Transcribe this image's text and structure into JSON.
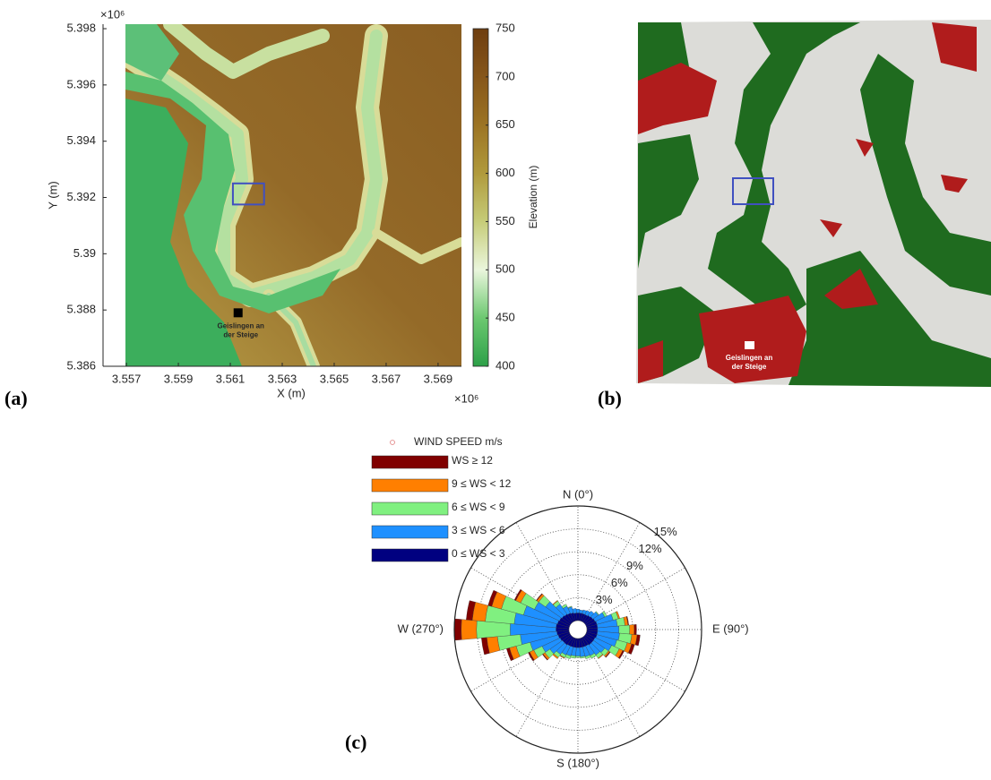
{
  "panel_labels": [
    "(a)",
    "(b)",
    "(c)"
  ],
  "landcover": {
    "site_label_lines": [
      "Geislingen an",
      "der Steige"
    ]
  },
  "chart_data": [
    {
      "type": "map",
      "x_label": "X (m)",
      "y_label": "Y (m)",
      "x_exponent": "×10⁶",
      "y_exponent": "×10⁶",
      "xlim": [
        3.5561,
        3.5699
      ],
      "ylim": [
        5.386,
        5.39816
      ],
      "xticks": [
        3.557,
        3.559,
        3.561,
        3.563,
        3.565,
        3.567,
        3.569
      ],
      "yticks": [
        5.386,
        5.388,
        5.39,
        5.392,
        5.394,
        5.396,
        5.398
      ],
      "colorbar": {
        "label": "Elevation (m)",
        "lim": [
          400,
          750
        ],
        "ticks": [
          400,
          450,
          500,
          550,
          600,
          650,
          700,
          750
        ],
        "colors": [
          "#2ca048",
          "#6cc870",
          "#eaf6dc",
          "#c6cc78",
          "#b09a3c",
          "#9c7424",
          "#86561a",
          "#6e3e10"
        ]
      },
      "site": {
        "label_lines": [
          "Geislingen an",
          "der Steige"
        ],
        "x": 3.5613,
        "y": 5.3879
      },
      "study_area": {
        "x": [
          3.5611,
          3.5623
        ],
        "y": [
          5.39175,
          5.3925
        ]
      },
      "study_area_color": "#4050c0"
    },
    {
      "type": "windrose",
      "legend_title": "WIND SPEED m/s",
      "directions": [
        0,
        10,
        20,
        30,
        40,
        50,
        60,
        70,
        80,
        90,
        100,
        110,
        120,
        130,
        140,
        150,
        160,
        170,
        180,
        190,
        200,
        210,
        220,
        230,
        240,
        250,
        260,
        270,
        280,
        290,
        300,
        310,
        320,
        330,
        340,
        350
      ],
      "rlim": [
        0,
        15
      ],
      "rticks": [
        {
          "value": 3,
          "label": "3%"
        },
        {
          "value": 6,
          "label": "6%"
        },
        {
          "value": 9,
          "label": "9%"
        },
        {
          "value": 12,
          "label": "12%"
        },
        {
          "value": 15,
          "label": "15%"
        }
      ],
      "angle_ticks": [
        {
          "value": 0,
          "label": "N (0°)"
        },
        {
          "value": 90,
          "label": "E (90°)"
        },
        {
          "value": 180,
          "label": "S (180°)"
        },
        {
          "value": 270,
          "label": "W (270°)"
        }
      ],
      "series": [
        {
          "name": "0 ≤ WS < 3",
          "color": "#000080",
          "values": [
            1.0,
            1.0,
            1.0,
            1.0,
            1.1,
            1.2,
            1.3,
            1.4,
            1.4,
            1.4,
            1.4,
            1.4,
            1.3,
            1.3,
            1.3,
            1.2,
            1.2,
            1.2,
            1.2,
            1.2,
            1.2,
            1.2,
            1.3,
            1.3,
            1.4,
            1.5,
            1.6,
            1.7,
            1.7,
            1.6,
            1.5,
            1.4,
            1.3,
            1.2,
            1.1,
            1.0
          ]
        },
        {
          "name": "3 ≤ WS < 6",
          "color": "#1e90ff",
          "values": [
            0.5,
            0.4,
            0.5,
            0.6,
            0.7,
            0.9,
            1.4,
            2.2,
            2.6,
            2.8,
            2.9,
            2.7,
            2.4,
            1.8,
            1.6,
            1.4,
            1.3,
            1.2,
            1.1,
            1.1,
            1.2,
            1.3,
            1.5,
            2.0,
            2.6,
            3.8,
            4.8,
            6.0,
            5.5,
            4.6,
            3.6,
            2.6,
            1.6,
            1.0,
            0.8,
            0.6
          ]
        },
        {
          "name": "6 ≤ WS < 9",
          "color": "#80f080",
          "values": [
            0,
            0,
            0,
            0,
            0,
            0.1,
            0.3,
            0.7,
            1.0,
            1.4,
            1.6,
            1.4,
            1.1,
            0.6,
            0.5,
            0.4,
            0.3,
            0.2,
            0.2,
            0.3,
            0.4,
            0.4,
            0.5,
            0.8,
            1.2,
            1.9,
            3.0,
            4.4,
            3.8,
            3.0,
            2.0,
            1.1,
            0.5,
            0.3,
            0.1,
            0
          ]
        },
        {
          "name": "9 ≤ WS < 12",
          "color": "#ff7f00",
          "values": [
            0,
            0,
            0,
            0,
            0,
            0,
            0,
            0.2,
            0.4,
            0.6,
            0.7,
            0.6,
            0.5,
            0.2,
            0.1,
            0,
            0,
            0,
            0,
            0,
            0,
            0.1,
            0.2,
            0.3,
            0.6,
            0.9,
            1.4,
            2.0,
            1.7,
            1.3,
            0.7,
            0.3,
            0.1,
            0,
            0,
            0
          ]
        },
        {
          "name": "WS ≥ 12",
          "color": "#800000",
          "values": [
            0,
            0,
            0,
            0,
            0,
            0,
            0,
            0,
            0.1,
            0.3,
            0.4,
            0.4,
            0.2,
            0.1,
            0,
            0,
            0,
            0,
            0,
            0,
            0,
            0,
            0,
            0.1,
            0.2,
            0.4,
            0.7,
            0.9,
            0.8,
            0.5,
            0.2,
            0.1,
            0,
            0,
            0,
            0
          ]
        }
      ]
    }
  ]
}
